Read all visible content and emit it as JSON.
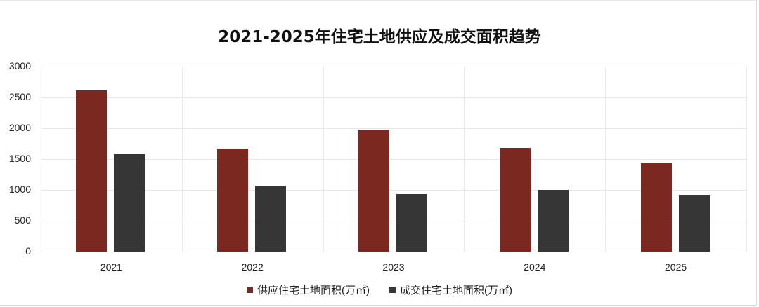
{
  "chart_data": {
    "type": "bar",
    "title": "2021-2025年住宅土地供应及成交面积趋势",
    "categories": [
      "2021",
      "2022",
      "2023",
      "2024",
      "2025"
    ],
    "series": [
      {
        "name": "供应住宅土地面积(万㎡)",
        "color": "#7a2820",
        "values": [
          2610,
          1670,
          1980,
          1680,
          1440
        ]
      },
      {
        "name": "成交住宅土地面积(万㎡)",
        "color": "#363636",
        "values": [
          1580,
          1070,
          930,
          1000,
          920
        ]
      }
    ],
    "xlabel": "",
    "ylabel": "",
    "ylim": [
      0,
      3000
    ],
    "yticks": [
      "0",
      "500",
      "1000",
      "1500",
      "2000",
      "2500",
      "3000"
    ],
    "grid": true,
    "legend_position": "bottom"
  }
}
